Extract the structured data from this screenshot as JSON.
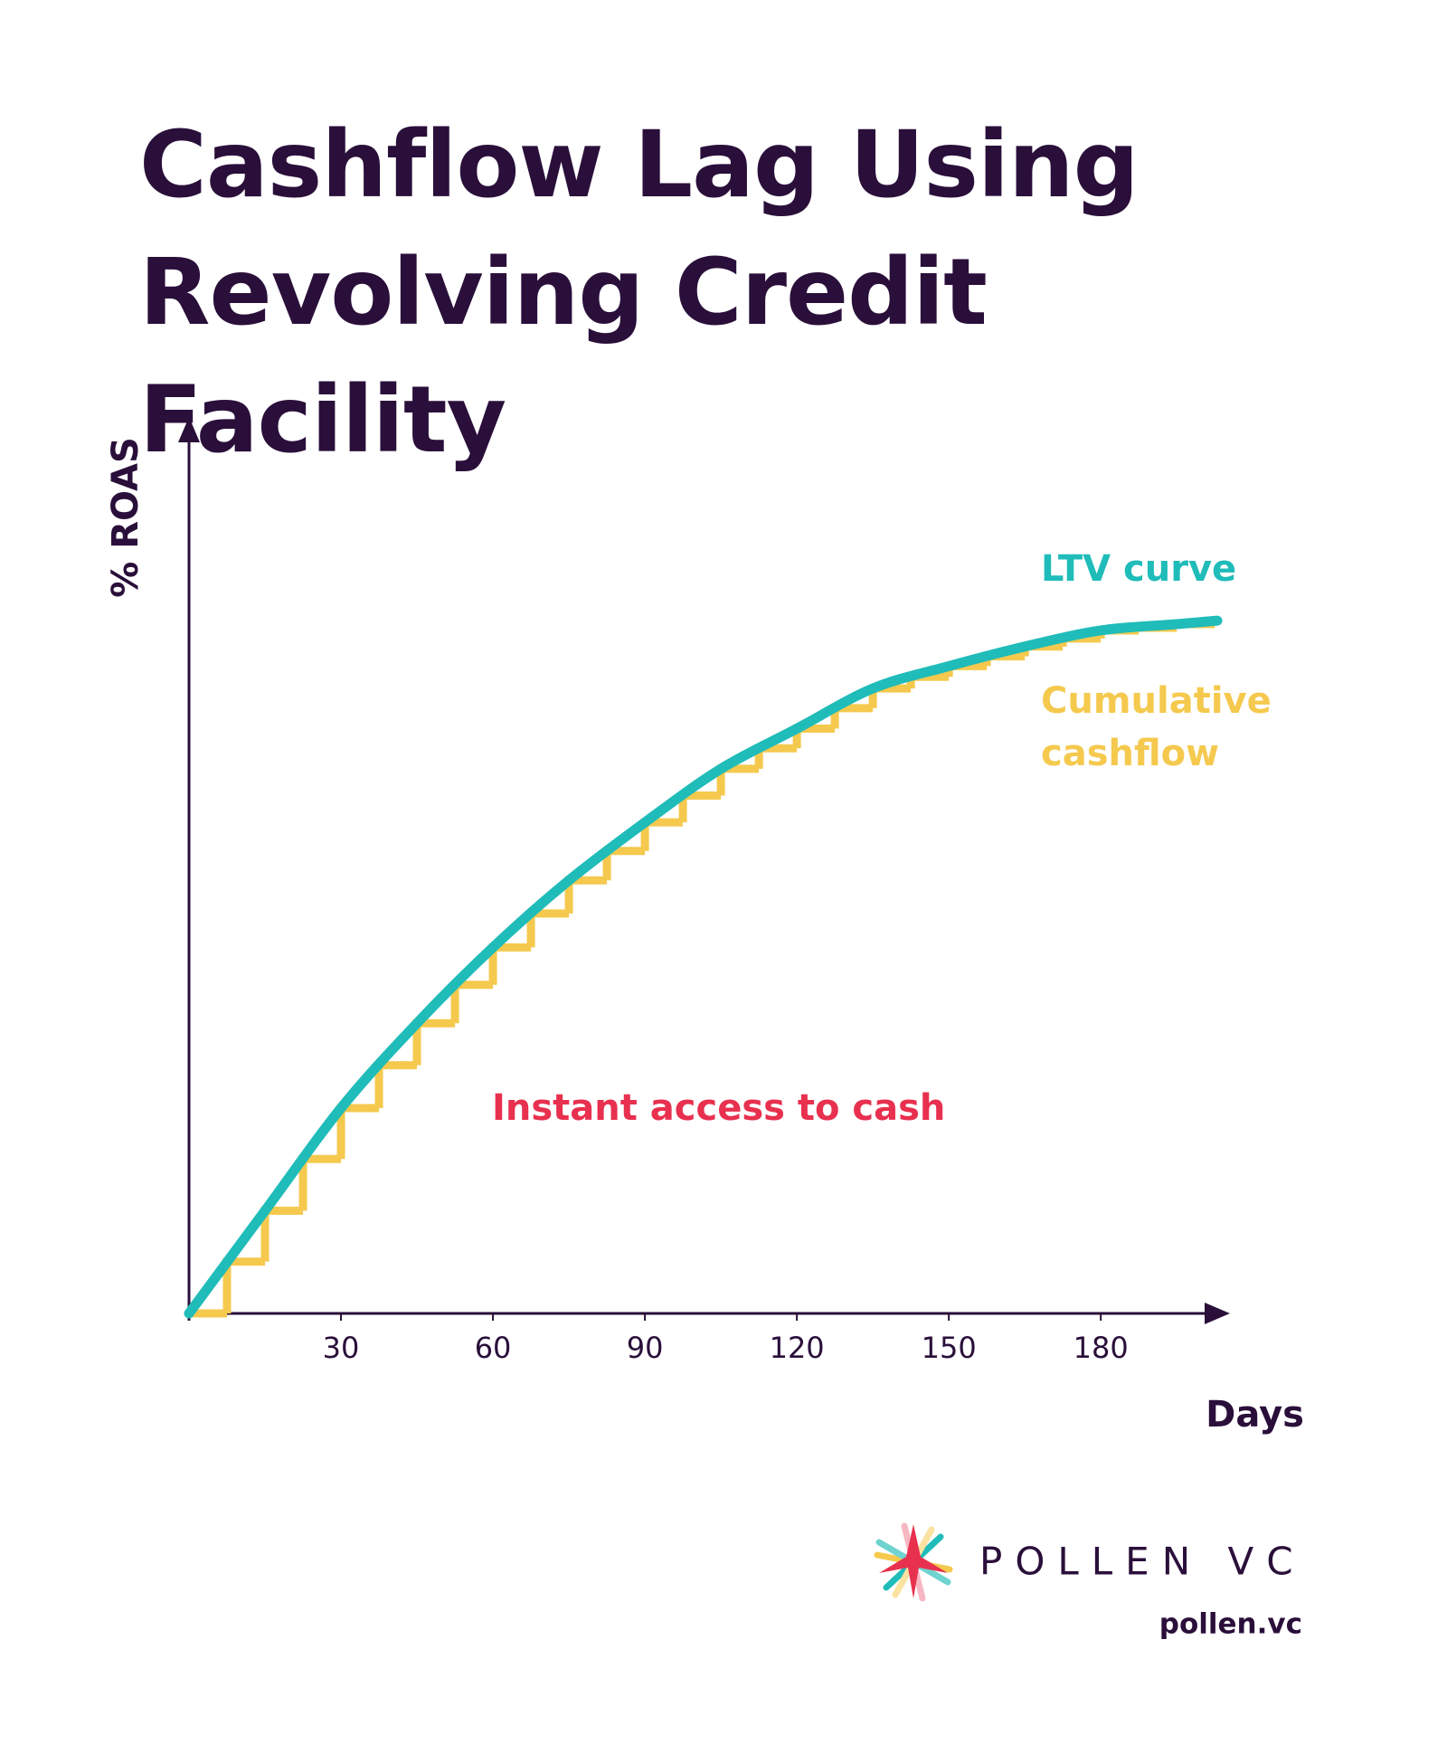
{
  "chart_data": {
    "type": "line",
    "title": "Cashflow Lag Using Revolving Credit Facility",
    "x_label": "Days",
    "y_label": "% ROAS",
    "xlim": [
      0,
      203
    ],
    "ylim": [
      0,
      100
    ],
    "xticks": [
      30,
      60,
      90,
      120,
      150,
      180
    ],
    "series": [
      {
        "name": "LTV curve",
        "color": "#1fbcb9",
        "x": [
          0,
          15,
          30,
          45,
          60,
          75,
          90,
          105,
          120,
          135,
          150,
          165,
          180,
          195,
          203
        ],
        "values": [
          0,
          11.5,
          23,
          32.5,
          41,
          48.5,
          55,
          61,
          65.5,
          70,
          72.5,
          74.7,
          76.5,
          77.2,
          77.6
        ]
      },
      {
        "name": "Cumulative cashflow",
        "color": "#f5c94e",
        "drawstyle": "steps-post",
        "x": [
          0,
          7.5,
          15,
          22.5,
          30,
          37.5,
          45,
          52.5,
          60,
          67.5,
          75,
          82.5,
          90,
          97.5,
          105,
          112.5,
          120,
          127.5,
          135,
          142.5,
          150,
          157.5,
          165,
          172.5,
          180,
          187.5,
          195,
          202.5
        ],
        "values": [
          0,
          5.8,
          11.5,
          17.3,
          23,
          27.8,
          32.5,
          36.8,
          41,
          44.8,
          48.5,
          51.8,
          55,
          58,
          61,
          63.3,
          65.5,
          67.8,
          70,
          71.3,
          72.5,
          73.6,
          74.7,
          75.6,
          76.5,
          76.8,
          77.2,
          77.2
        ]
      }
    ],
    "annotations": [
      {
        "text": "Instant access to cash",
        "color": "#e8304f"
      }
    ]
  },
  "footer": {
    "brand": "POLLEN VC",
    "url": "pollen.vc"
  }
}
